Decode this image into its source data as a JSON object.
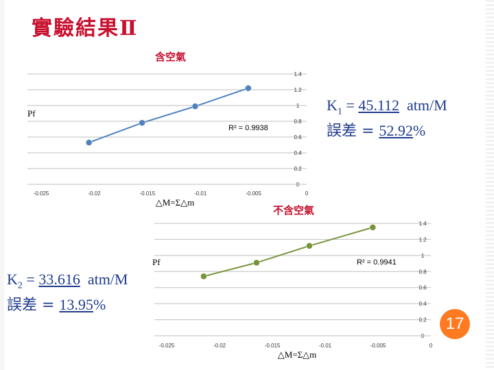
{
  "slide": {
    "title": "實驗結果Ⅱ",
    "page_number": "17"
  },
  "colors": {
    "title": "#c8102e",
    "accent_text": "#1f3b8c",
    "series1": "#4f81bd",
    "series2": "#77933c",
    "gridline": "#bfbfbf",
    "badge": "#ff7a21"
  },
  "annotations": {
    "chart1_result": {
      "k_label": "K",
      "k_sub": "1",
      "k_eq": " = ",
      "k_value": "45.112",
      "k_unit": "  atm/M",
      "err_label": "誤差 = ",
      "err_value": "52.92",
      "err_unit": "%"
    },
    "chart2_result": {
      "k_label": "K",
      "k_sub": "2",
      "k_eq": " = ",
      "k_value": "33.616",
      "k_unit": "  atm/M",
      "err_label": "誤差 = ",
      "err_value": "13.95",
      "err_unit": "%"
    }
  },
  "chart_data": [
    {
      "type": "scatter",
      "title": "含空氣",
      "xlabel": "△M=Σ△m",
      "ylabel": "Pf",
      "xlim": [
        -0.025,
        0
      ],
      "ylim": [
        0,
        1.4
      ],
      "x_ticks": [
        "-0.025",
        "-0.02",
        "-0.015",
        "-0.01",
        "-0.005",
        "0"
      ],
      "y_ticks": [
        "0",
        "0.2",
        "0.4",
        "0.6",
        "0.8",
        "1",
        "1.2",
        "1.4"
      ],
      "grid": true,
      "r_squared": "R² = 0.9938",
      "series": [
        {
          "x": [
            -0.0205,
            -0.0155,
            -0.0105,
            -0.0055
          ],
          "y": [
            0.53,
            0.78,
            0.99,
            1.22
          ]
        }
      ]
    },
    {
      "type": "scatter",
      "title": "不含空氣",
      "xlabel": "△M=Σ△m",
      "ylabel": "Pf",
      "xlim": [
        -0.025,
        0
      ],
      "ylim": [
        0,
        1.4
      ],
      "x_ticks": [
        "-0.025",
        "-0.02",
        "-0.015",
        "-0.01",
        "-0.005",
        "0"
      ],
      "y_ticks": [
        "0",
        "0.2",
        "0.4",
        "0.6",
        "0.8",
        "1",
        "1.2",
        "1.4"
      ],
      "grid": true,
      "r_squared": "R² = 0.9941",
      "series": [
        {
          "x": [
            -0.0215,
            -0.0165,
            -0.0115,
            -0.0055
          ],
          "y": [
            0.74,
            0.91,
            1.12,
            1.35
          ]
        }
      ]
    }
  ]
}
